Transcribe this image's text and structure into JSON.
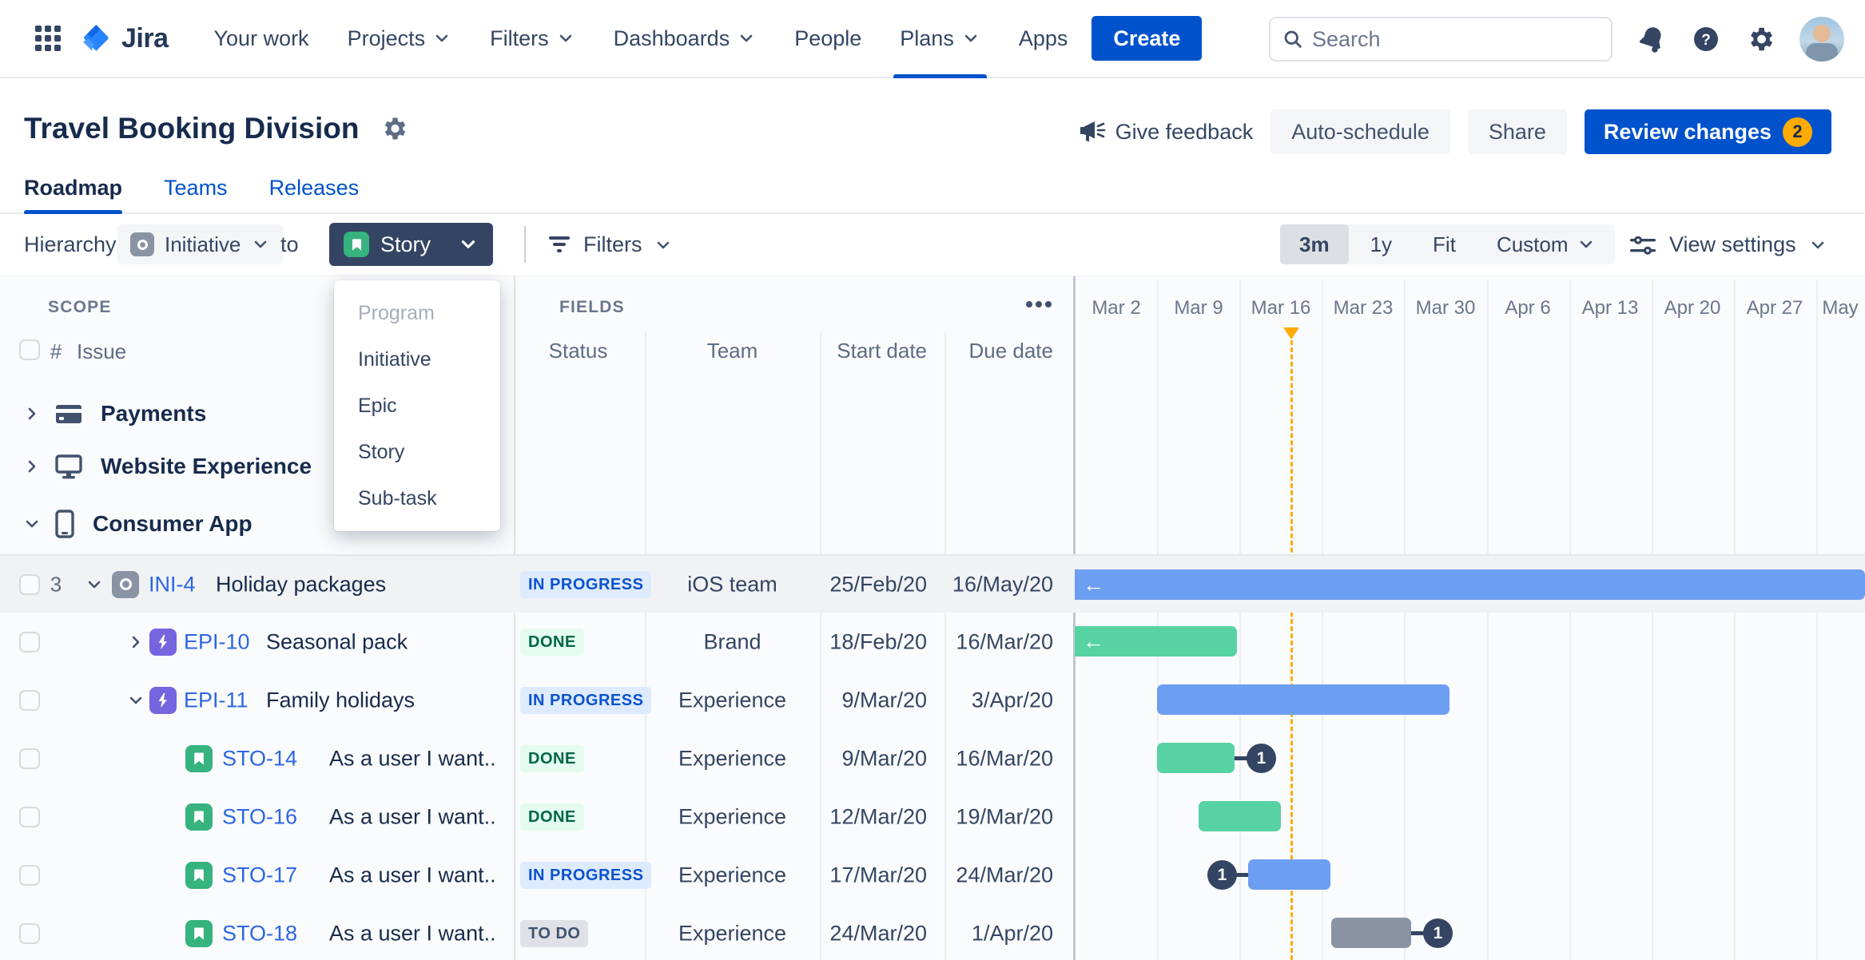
{
  "nav": {
    "app_name": "Jira",
    "items": [
      {
        "label": "Your work"
      },
      {
        "label": "Projects",
        "chevron": true
      },
      {
        "label": "Filters",
        "chevron": true
      },
      {
        "label": "Dashboards",
        "chevron": true
      },
      {
        "label": "People"
      },
      {
        "label": "Plans",
        "chevron": true,
        "active": true
      },
      {
        "label": "Apps"
      }
    ],
    "create_label": "Create",
    "search_placeholder": "Search"
  },
  "header": {
    "title": "Travel Booking Division",
    "give_feedback": "Give feedback",
    "auto_schedule": "Auto-schedule",
    "share": "Share",
    "review_changes": "Review changes",
    "review_badge": "2"
  },
  "tabs": [
    {
      "label": "Roadmap",
      "active": true
    },
    {
      "label": "Teams"
    },
    {
      "label": "Releases"
    }
  ],
  "toolbar": {
    "hierarchy_label": "Hierarchy:",
    "from_value": "Initiative",
    "to_label": "to",
    "to_value": "Story",
    "filters_label": "Filters",
    "zoom_options": [
      {
        "label": "3m",
        "selected": true
      },
      {
        "label": "1y"
      },
      {
        "label": "Fit"
      },
      {
        "label": "Custom",
        "chevron": true
      }
    ],
    "view_settings_label": "View settings"
  },
  "dropdown": {
    "items": [
      {
        "label": "Program",
        "disabled": true
      },
      {
        "label": "Initiative"
      },
      {
        "label": "Epic"
      },
      {
        "label": "Story"
      },
      {
        "label": "Sub-task"
      }
    ]
  },
  "panels": {
    "scope_label": "SCOPE",
    "fields_label": "FIELDS",
    "hash_header": "#",
    "issue_header": "Issue",
    "more_icon": "more-options"
  },
  "fields": {
    "columns": [
      {
        "label": "Status"
      },
      {
        "label": "Team"
      },
      {
        "label": "Start date"
      },
      {
        "label": "Due date"
      }
    ]
  },
  "scope": {
    "groups": [
      {
        "icon": "card",
        "label": "Payments",
        "expander": "right"
      },
      {
        "icon": "monitor",
        "label": "Website Experience",
        "expander": "right"
      },
      {
        "icon": "phone",
        "label": "Consumer App",
        "expander": "down"
      }
    ]
  },
  "timeline": {
    "columns": [
      "Mar 2",
      "Mar 9",
      "Mar 16",
      "Mar 23",
      "Mar 30",
      "Apr 6",
      "Apr 13",
      "Apr 20",
      "Apr 27",
      "May"
    ],
    "today_column": "Mar 16"
  },
  "rows": [
    {
      "level": 1,
      "count": "3",
      "expander": "down",
      "type": "initiative",
      "key": "INI-4",
      "summary": "Holiday packages",
      "status": {
        "label": "IN PROGRESS",
        "kind": "inprogress"
      },
      "team": "iOS team",
      "start": "25/Feb/20",
      "due": "16/May/20",
      "highlighted": true,
      "bar": {
        "start": 0,
        "end": 989,
        "color": "blue",
        "arrow": true
      }
    },
    {
      "level": 2,
      "expander": "right",
      "type": "epic",
      "key": "EPI-10",
      "summary": "Seasonal pack",
      "status": {
        "label": "DONE",
        "kind": "done"
      },
      "team": "Brand",
      "start": "18/Feb/20",
      "due": "16/Mar/20",
      "bar": {
        "start": 0,
        "end": 203,
        "color": "green",
        "arrow": true
      }
    },
    {
      "level": 2,
      "expander": "down",
      "type": "epic",
      "key": "EPI-11",
      "summary": "Family holidays",
      "status": {
        "label": "IN PROGRESS",
        "kind": "inprogress"
      },
      "team": "Experience",
      "start": "9/Mar/20",
      "due": "3/Apr/20",
      "bar": {
        "start": 103,
        "end": 469,
        "color": "blue"
      }
    },
    {
      "level": 3,
      "type": "story",
      "key": "STO-14",
      "summary": "As a user I want..",
      "status": {
        "label": "DONE",
        "kind": "done"
      },
      "team": "Experience",
      "start": "9/Mar/20",
      "due": "16/Mar/20",
      "bar": {
        "start": 103,
        "end": 200,
        "color": "green",
        "badge": "right",
        "badge_label": "1"
      }
    },
    {
      "level": 3,
      "type": "story",
      "key": "STO-16",
      "summary": "As a user I want..",
      "status": {
        "label": "DONE",
        "kind": "done"
      },
      "team": "Experience",
      "start": "12/Mar/20",
      "due": "19/Mar/20",
      "bar": {
        "start": 155,
        "end": 258,
        "color": "green"
      }
    },
    {
      "level": 3,
      "type": "story",
      "key": "STO-17",
      "summary": "As a user I want..",
      "status": {
        "label": "IN PROGRESS",
        "kind": "inprogress"
      },
      "team": "Experience",
      "start": "17/Mar/20",
      "due": "24/Mar/20",
      "bar": {
        "start": 217,
        "end": 320,
        "color": "blue",
        "badge": "left",
        "badge_label": "1"
      }
    },
    {
      "level": 3,
      "type": "story",
      "key": "STO-18",
      "summary": "As a user I want..",
      "status": {
        "label": "TO DO",
        "kind": "todo"
      },
      "team": "Experience",
      "start": "24/Mar/20",
      "due": "1/Apr/20",
      "bar": {
        "start": 321,
        "end": 421,
        "color": "gray",
        "badge": "right",
        "badge_label": "1"
      }
    }
  ],
  "colors": {
    "accent": "#0052CC",
    "today": "#FFAB00",
    "bar_blue": "#6C9EF2",
    "bar_green": "#57D2A2",
    "bar_gray": "#8993A4",
    "badge_navy": "#344563"
  }
}
